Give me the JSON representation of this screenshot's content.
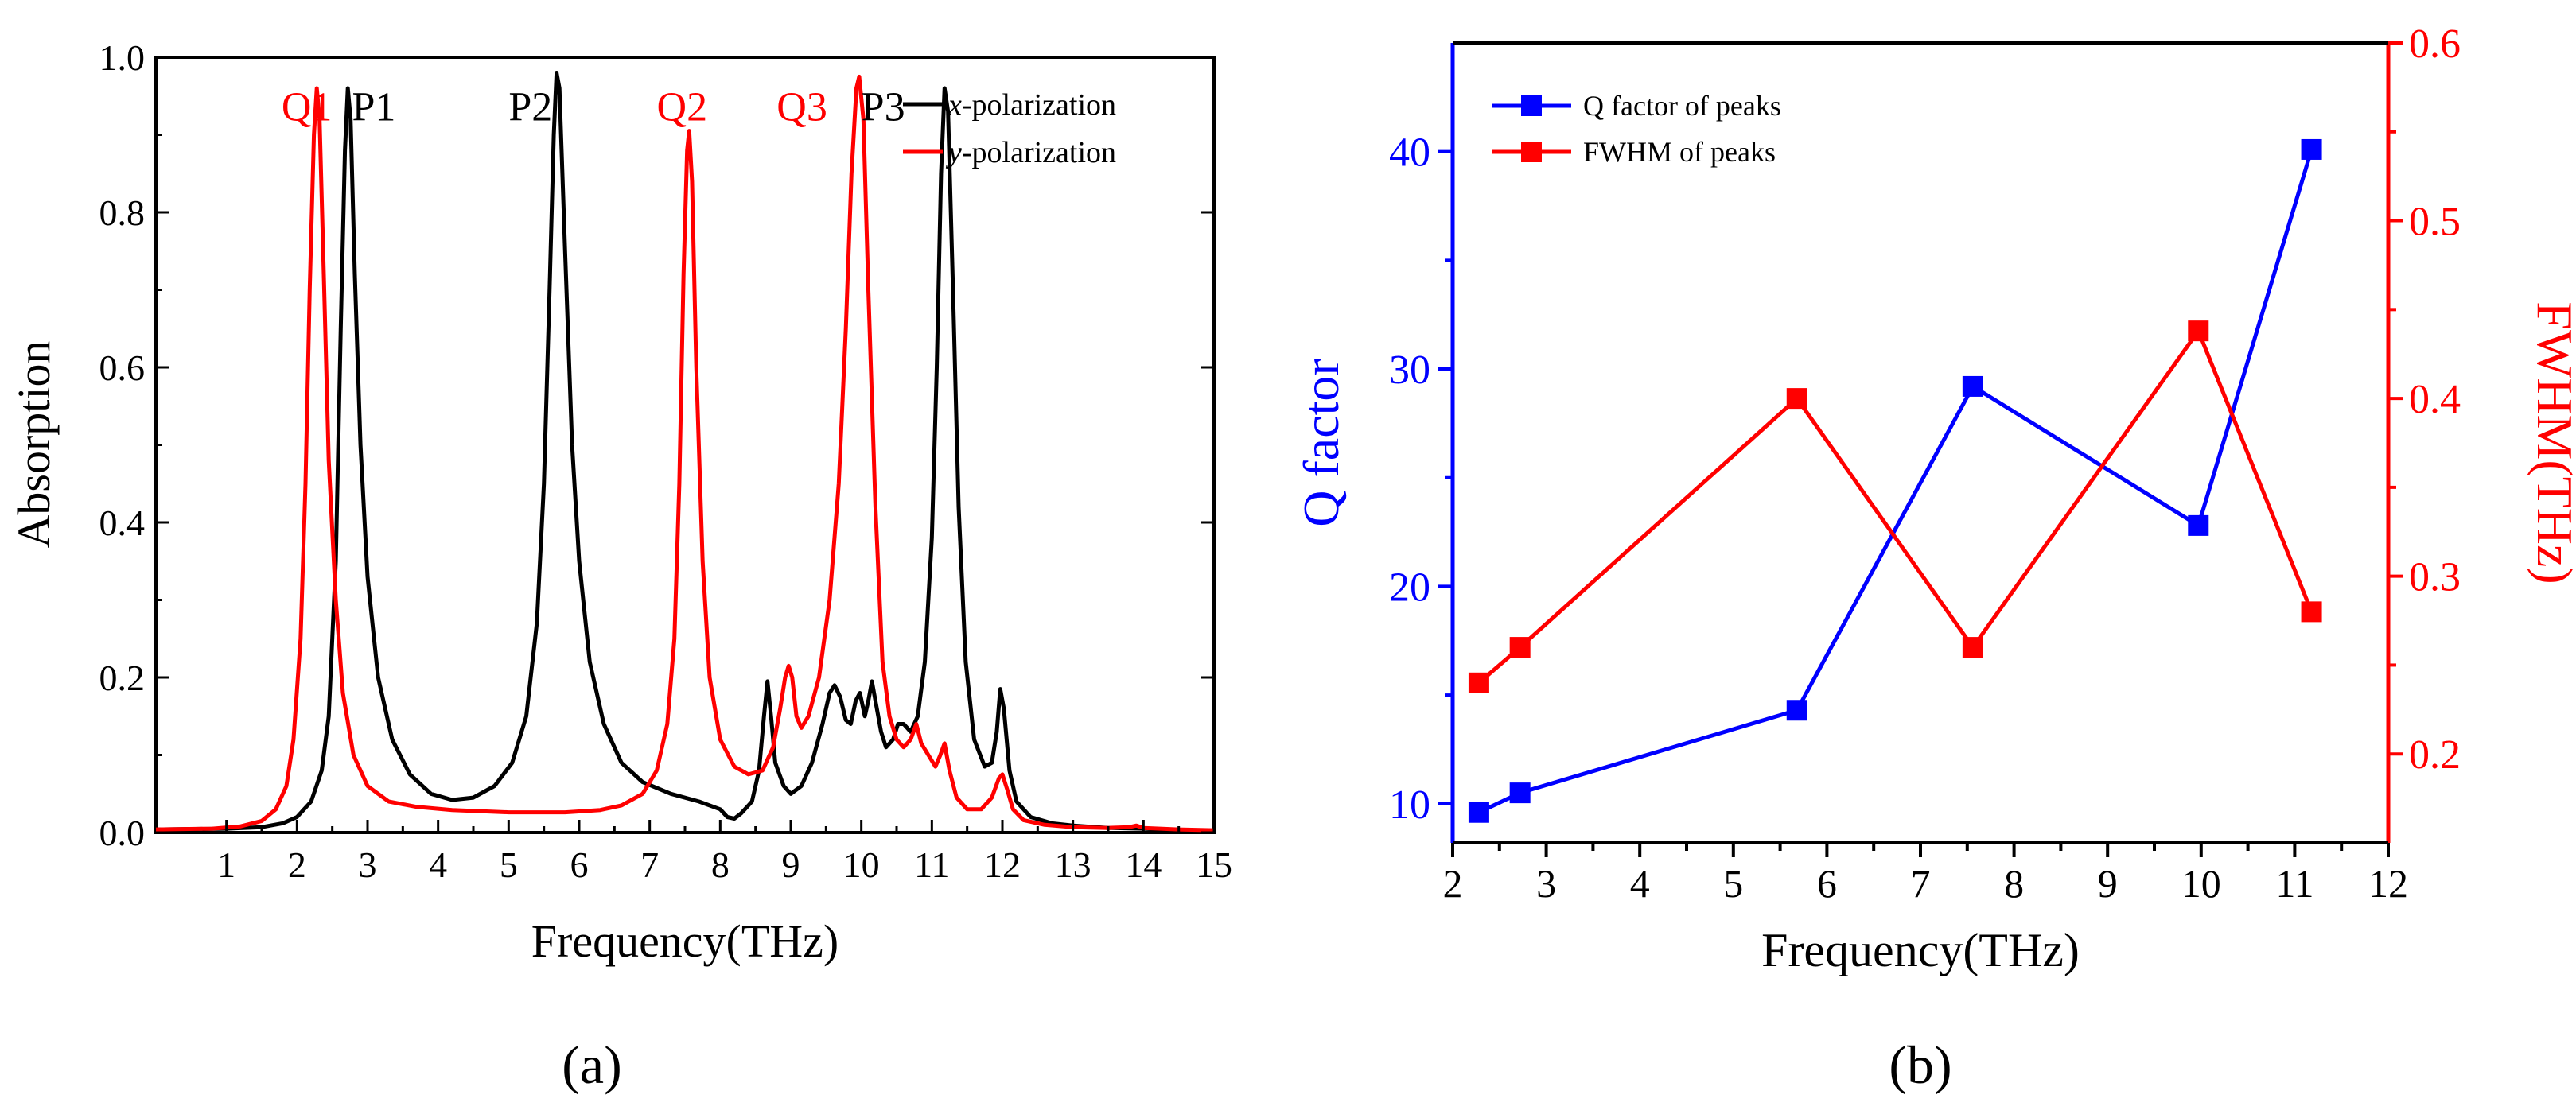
{
  "colors": {
    "black": "#000000",
    "red": "#ff0000",
    "blue": "#0000ff"
  },
  "chart_data": [
    {
      "type": "line",
      "panel_label": "(a)",
      "xlabel": "Frequency(THz)",
      "ylabel": "Absorption",
      "xlim": [
        0,
        15
      ],
      "ylim": [
        0,
        1.0
      ],
      "xticks": [
        "1",
        "2",
        "3",
        "4",
        "5",
        "6",
        "7",
        "8",
        "9",
        "10",
        "11",
        "12",
        "13",
        "14",
        "15"
      ],
      "yticks": [
        "0.0",
        "0.2",
        "0.4",
        "0.6",
        "0.8",
        "1.0"
      ],
      "legend": {
        "position": "top-right",
        "entries": [
          {
            "prefix": "x",
            "suffix": "-polarization"
          },
          {
            "prefix": "y",
            "suffix": "-polarization"
          }
        ]
      },
      "annotations": [
        {
          "text": "Q1",
          "x": 1.78,
          "y": 0.935,
          "color": "red"
        },
        {
          "text": "P1",
          "x": 2.78,
          "y": 0.935,
          "color": "black"
        },
        {
          "text": "P2",
          "x": 5.0,
          "y": 0.935,
          "color": "black"
        },
        {
          "text": "Q2",
          "x": 7.1,
          "y": 0.935,
          "color": "red"
        },
        {
          "text": "Q3",
          "x": 8.8,
          "y": 0.935,
          "color": "red"
        },
        {
          "text": "P3",
          "x": 10.0,
          "y": 0.935,
          "color": "black"
        }
      ],
      "series": [
        {
          "name": "x-polarization",
          "color": "black",
          "points": [
            [
              0,
              0.004
            ],
            [
              1.0,
              0.005
            ],
            [
              1.5,
              0.007
            ],
            [
              1.8,
              0.012
            ],
            [
              2.0,
              0.02
            ],
            [
              2.2,
              0.04
            ],
            [
              2.35,
              0.08
            ],
            [
              2.45,
              0.15
            ],
            [
              2.55,
              0.35
            ],
            [
              2.62,
              0.65
            ],
            [
              2.68,
              0.88
            ],
            [
              2.72,
              0.96
            ],
            [
              2.76,
              0.92
            ],
            [
              2.82,
              0.72
            ],
            [
              2.9,
              0.5
            ],
            [
              3.0,
              0.33
            ],
            [
              3.15,
              0.2
            ],
            [
              3.35,
              0.12
            ],
            [
              3.6,
              0.075
            ],
            [
              3.9,
              0.05
            ],
            [
              4.2,
              0.042
            ],
            [
              4.5,
              0.045
            ],
            [
              4.8,
              0.06
            ],
            [
              5.05,
              0.09
            ],
            [
              5.25,
              0.15
            ],
            [
              5.4,
              0.27
            ],
            [
              5.5,
              0.45
            ],
            [
              5.58,
              0.7
            ],
            [
              5.64,
              0.9
            ],
            [
              5.68,
              0.98
            ],
            [
              5.72,
              0.96
            ],
            [
              5.8,
              0.75
            ],
            [
              5.9,
              0.5
            ],
            [
              6.0,
              0.35
            ],
            [
              6.15,
              0.22
            ],
            [
              6.35,
              0.14
            ],
            [
              6.6,
              0.09
            ],
            [
              6.9,
              0.065
            ],
            [
              7.3,
              0.05
            ],
            [
              7.7,
              0.04
            ],
            [
              8.0,
              0.03
            ],
            [
              8.1,
              0.02
            ],
            [
              8.2,
              0.018
            ],
            [
              8.3,
              0.025
            ],
            [
              8.45,
              0.04
            ],
            [
              8.55,
              0.08
            ],
            [
              8.62,
              0.15
            ],
            [
              8.67,
              0.195
            ],
            [
              8.72,
              0.15
            ],
            [
              8.78,
              0.09
            ],
            [
              8.9,
              0.06
            ],
            [
              9.0,
              0.05
            ],
            [
              9.15,
              0.06
            ],
            [
              9.3,
              0.09
            ],
            [
              9.45,
              0.14
            ],
            [
              9.55,
              0.18
            ],
            [
              9.62,
              0.19
            ],
            [
              9.7,
              0.175
            ],
            [
              9.78,
              0.145
            ],
            [
              9.85,
              0.14
            ],
            [
              9.92,
              0.17
            ],
            [
              9.98,
              0.18
            ],
            [
              10.05,
              0.15
            ],
            [
              10.1,
              0.17
            ],
            [
              10.15,
              0.195
            ],
            [
              10.2,
              0.17
            ],
            [
              10.28,
              0.13
            ],
            [
              10.35,
              0.11
            ],
            [
              10.45,
              0.12
            ],
            [
              10.52,
              0.14
            ],
            [
              10.6,
              0.14
            ],
            [
              10.7,
              0.13
            ],
            [
              10.8,
              0.15
            ],
            [
              10.9,
              0.22
            ],
            [
              11.0,
              0.38
            ],
            [
              11.07,
              0.6
            ],
            [
              11.13,
              0.85
            ],
            [
              11.18,
              0.96
            ],
            [
              11.23,
              0.93
            ],
            [
              11.3,
              0.7
            ],
            [
              11.38,
              0.42
            ],
            [
              11.48,
              0.22
            ],
            [
              11.6,
              0.12
            ],
            [
              11.75,
              0.085
            ],
            [
              11.85,
              0.09
            ],
            [
              11.92,
              0.13
            ],
            [
              11.97,
              0.185
            ],
            [
              12.02,
              0.16
            ],
            [
              12.1,
              0.08
            ],
            [
              12.2,
              0.04
            ],
            [
              12.4,
              0.02
            ],
            [
              12.7,
              0.012
            ],
            [
              13.0,
              0.009
            ],
            [
              13.5,
              0.006
            ],
            [
              14.0,
              0.005
            ],
            [
              14.5,
              0.003
            ],
            [
              15.0,
              0.002
            ]
          ]
        },
        {
          "name": "y-polarization",
          "color": "red",
          "points": [
            [
              0,
              0.004
            ],
            [
              0.8,
              0.005
            ],
            [
              1.2,
              0.008
            ],
            [
              1.5,
              0.015
            ],
            [
              1.7,
              0.03
            ],
            [
              1.85,
              0.06
            ],
            [
              1.95,
              0.12
            ],
            [
              2.05,
              0.25
            ],
            [
              2.12,
              0.45
            ],
            [
              2.18,
              0.7
            ],
            [
              2.24,
              0.9
            ],
            [
              2.28,
              0.96
            ],
            [
              2.32,
              0.92
            ],
            [
              2.38,
              0.72
            ],
            [
              2.45,
              0.48
            ],
            [
              2.55,
              0.3
            ],
            [
              2.65,
              0.18
            ],
            [
              2.8,
              0.1
            ],
            [
              3.0,
              0.06
            ],
            [
              3.3,
              0.04
            ],
            [
              3.7,
              0.033
            ],
            [
              4.2,
              0.029
            ],
            [
              5.0,
              0.026
            ],
            [
              5.8,
              0.026
            ],
            [
              6.3,
              0.029
            ],
            [
              6.6,
              0.035
            ],
            [
              6.9,
              0.05
            ],
            [
              7.1,
              0.08
            ],
            [
              7.25,
              0.14
            ],
            [
              7.35,
              0.25
            ],
            [
              7.42,
              0.45
            ],
            [
              7.48,
              0.72
            ],
            [
              7.53,
              0.88
            ],
            [
              7.56,
              0.905
            ],
            [
              7.6,
              0.84
            ],
            [
              7.66,
              0.6
            ],
            [
              7.75,
              0.35
            ],
            [
              7.85,
              0.2
            ],
            [
              8.0,
              0.12
            ],
            [
              8.2,
              0.085
            ],
            [
              8.4,
              0.075
            ],
            [
              8.6,
              0.08
            ],
            [
              8.75,
              0.11
            ],
            [
              8.85,
              0.16
            ],
            [
              8.92,
              0.2
            ],
            [
              8.97,
              0.215
            ],
            [
              9.02,
              0.2
            ],
            [
              9.08,
              0.15
            ],
            [
              9.15,
              0.135
            ],
            [
              9.25,
              0.15
            ],
            [
              9.4,
              0.2
            ],
            [
              9.55,
              0.3
            ],
            [
              9.68,
              0.45
            ],
            [
              9.78,
              0.65
            ],
            [
              9.86,
              0.85
            ],
            [
              9.93,
              0.96
            ],
            [
              9.97,
              0.975
            ],
            [
              10.03,
              0.92
            ],
            [
              10.1,
              0.7
            ],
            [
              10.2,
              0.42
            ],
            [
              10.3,
              0.22
            ],
            [
              10.4,
              0.15
            ],
            [
              10.5,
              0.12
            ],
            [
              10.6,
              0.11
            ],
            [
              10.7,
              0.12
            ],
            [
              10.78,
              0.14
            ],
            [
              10.85,
              0.115
            ],
            [
              10.95,
              0.1
            ],
            [
              11.05,
              0.085
            ],
            [
              11.12,
              0.1
            ],
            [
              11.18,
              0.115
            ],
            [
              11.25,
              0.08
            ],
            [
              11.35,
              0.045
            ],
            [
              11.5,
              0.03
            ],
            [
              11.7,
              0.03
            ],
            [
              11.85,
              0.045
            ],
            [
              11.95,
              0.07
            ],
            [
              12.0,
              0.075
            ],
            [
              12.07,
              0.055
            ],
            [
              12.15,
              0.03
            ],
            [
              12.3,
              0.016
            ],
            [
              12.6,
              0.01
            ],
            [
              13.0,
              0.007
            ],
            [
              13.5,
              0.006
            ],
            [
              13.8,
              0.007
            ],
            [
              13.9,
              0.009
            ],
            [
              14.0,
              0.006
            ],
            [
              14.5,
              0.004
            ],
            [
              15.0,
              0.003
            ]
          ]
        }
      ]
    },
    {
      "type": "line",
      "panel_label": "(b)",
      "xlabel": "Frequency(THz)",
      "ylabel_left": "Q factor",
      "ylabel_right": "FWHM(THz)",
      "xlim": [
        2,
        12
      ],
      "ylim_left": [
        8.2,
        45
      ],
      "ylim_right": [
        0.15,
        0.6
      ],
      "xticks": [
        "2",
        "3",
        "4",
        "5",
        "6",
        "7",
        "8",
        "9",
        "10",
        "11",
        "12"
      ],
      "yticks_left": [
        "10",
        "20",
        "30",
        "40"
      ],
      "yticks_right": [
        "0.2",
        "0.3",
        "0.4",
        "0.5",
        "0.6"
      ],
      "legend": {
        "position": "top-left",
        "entries": [
          "Q factor of  peaks",
          "FWHM of peaks"
        ]
      },
      "series": [
        {
          "name": "Q factor of  peaks",
          "axis": "left",
          "color": "blue",
          "x": [
            2.28,
            2.72,
            5.68,
            7.56,
            9.97,
            11.18
          ],
          "y": [
            9.6,
            10.5,
            14.3,
            29.2,
            22.8,
            40.1
          ]
        },
        {
          "name": "FWHM of peaks",
          "axis": "right",
          "color": "red",
          "x": [
            2.28,
            2.72,
            5.68,
            7.56,
            9.97,
            11.18
          ],
          "y": [
            0.24,
            0.26,
            0.4,
            0.26,
            0.438,
            0.28
          ]
        }
      ]
    }
  ]
}
